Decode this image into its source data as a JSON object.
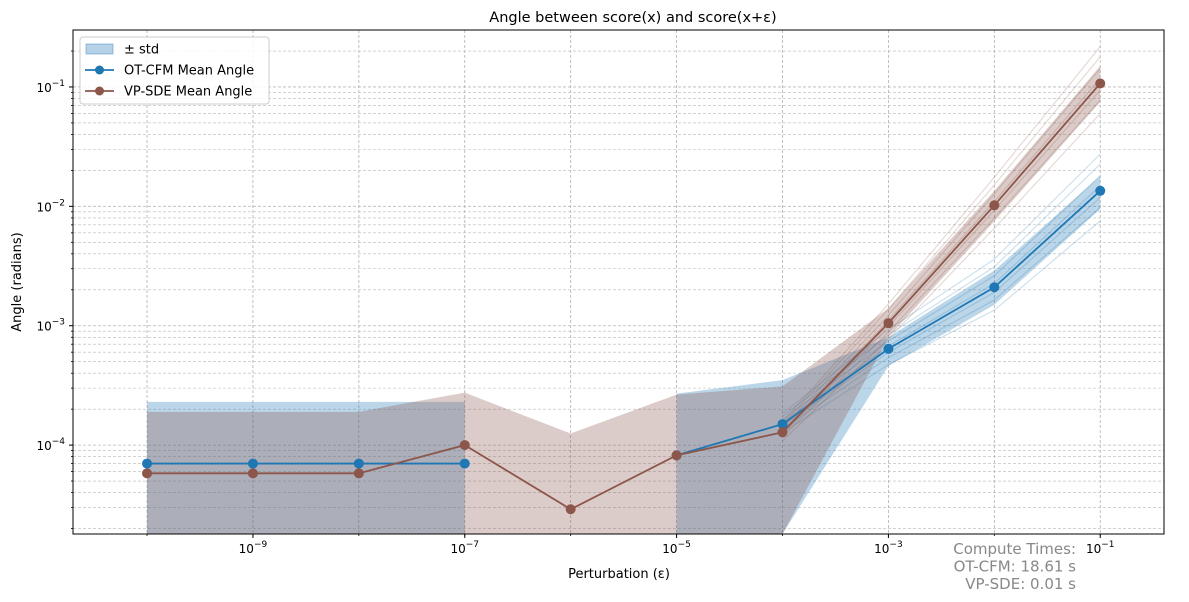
{
  "chart_data": {
    "type": "line",
    "title": "Angle between score(x) and score(x+ε)",
    "xlabel": "Perturbation (ε)",
    "ylabel": "Angle (radians)",
    "xscale": "log",
    "yscale": "log",
    "xlim": [
      2e-11,
      0.4
    ],
    "ylim": [
      1.8e-05,
      0.3
    ],
    "grid": true,
    "legend_position": "top-left",
    "x_ticks": [
      {
        "exp": -9,
        "base": "10",
        "sup": "−9"
      },
      {
        "exp": -7,
        "base": "10",
        "sup": "−7"
      },
      {
        "exp": -5,
        "base": "10",
        "sup": "−5"
      },
      {
        "exp": -3,
        "base": "10",
        "sup": "−3"
      },
      {
        "exp": -1,
        "base": "10",
        "sup": "−1"
      }
    ],
    "y_ticks": [
      {
        "exp": -4,
        "base": "10",
        "sup": "−4"
      },
      {
        "exp": -3,
        "base": "10",
        "sup": "−3"
      },
      {
        "exp": -2,
        "base": "10",
        "sup": "−2"
      },
      {
        "exp": -1,
        "base": "10",
        "sup": "−1"
      }
    ],
    "x": [
      1e-10,
      1e-09,
      1e-08,
      1e-07,
      1e-06,
      1e-05,
      0.0001,
      0.001,
      0.01,
      0.1
    ],
    "series": [
      {
        "name": "OT-CFM Mean Angle",
        "color": "#1f77b4",
        "values": [
          7e-05,
          7e-05,
          7e-05,
          7e-05,
          null,
          8.2e-05,
          0.00015,
          0.00064,
          0.0021,
          0.0135
        ],
        "std_upper": [
          0.00023,
          0.00023,
          0.00023,
          0.00023,
          null,
          0.00027,
          0.00035,
          0.0008,
          0.0029,
          0.018
        ],
        "std_lower": [
          1.8e-05,
          1.8e-05,
          1.8e-05,
          1.8e-05,
          null,
          1.8e-05,
          1.8e-05,
          0.00046,
          0.0015,
          0.0095
        ]
      },
      {
        "name": "VP-SDE Mean Angle",
        "color": "#8c564b",
        "values": [
          5.8e-05,
          5.8e-05,
          5.8e-05,
          0.0001,
          2.9e-05,
          8.2e-05,
          0.000128,
          0.00105,
          0.0102,
          0.107
        ],
        "std_upper": [
          0.00019,
          0.00019,
          0.00019,
          0.000275,
          0.000125,
          0.000265,
          0.00031,
          0.0014,
          0.0135,
          0.15
        ],
        "std_lower": [
          1.8e-05,
          1.8e-05,
          1.8e-05,
          1.8e-05,
          1.8e-05,
          1.8e-05,
          1.8e-05,
          0.0008,
          0.0075,
          0.075
        ]
      }
    ],
    "legend": [
      {
        "label": "± std",
        "kind": "patch",
        "color": "#9ec3e0"
      },
      {
        "label": "OT-CFM Mean Angle",
        "kind": "line",
        "color": "#1f77b4"
      },
      {
        "label": "VP-SDE Mean Angle",
        "kind": "line",
        "color": "#8c564b"
      }
    ],
    "annotation": [
      "Compute Times:",
      "OT-CFM: 18.61 s",
      "VP-SDE: 0.01 s"
    ]
  }
}
